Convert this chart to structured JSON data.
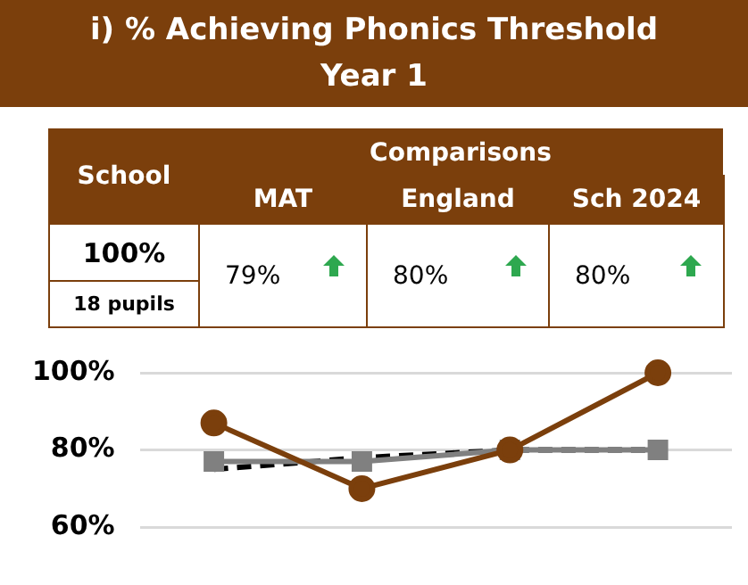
{
  "chart_data": [
    {
      "type": "other",
      "title": "i) % Achieving Phonics Threshold",
      "subtitle": "Year 1",
      "annotations": [
        "School",
        "Comparisons",
        "MAT",
        "England",
        "Sch 2024",
        "100%",
        "18 pupils",
        "79%",
        "80%",
        "80%"
      ]
    },
    {
      "type": "line",
      "categories": [
        null,
        null,
        null,
        null
      ],
      "ylim": [
        60,
        100
      ],
      "yticks": [
        {
          "value": 60,
          "label": "60%"
        },
        {
          "value": 80,
          "label": "80%"
        },
        {
          "value": 100,
          "label": "100%"
        }
      ],
      "grid": "y",
      "legend": false,
      "series": [
        {
          "color": "#000000",
          "values": [
            75,
            78,
            80,
            80
          ],
          "marker": "none",
          "line_style": "dashed"
        },
        {
          "color": "#808080",
          "values": [
            77,
            77,
            80,
            80
          ],
          "marker": "square",
          "line_style": "solid"
        },
        {
          "color": "#7b3f0c",
          "values": [
            87,
            70,
            80,
            100
          ],
          "marker": "circle",
          "line_style": "solid"
        }
      ]
    }
  ]
}
